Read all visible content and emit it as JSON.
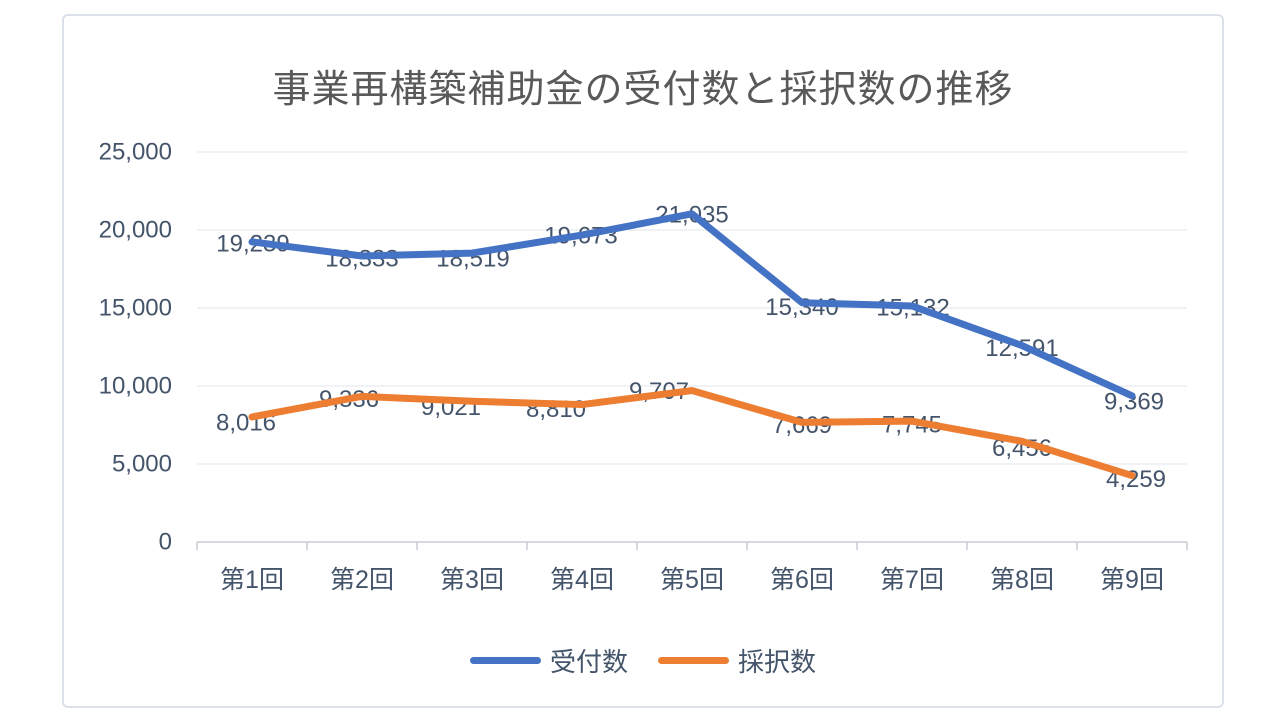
{
  "chart_data": {
    "type": "line",
    "title": "事業再構築補助金の受付数と採択数の推移",
    "categories": [
      "第1回",
      "第2回",
      "第3回",
      "第4回",
      "第5回",
      "第6回",
      "第7回",
      "第8回",
      "第9回"
    ],
    "series": [
      {
        "name": "受付数",
        "color": "#4472C4",
        "values": [
          19239,
          18333,
          18519,
          19673,
          21035,
          15340,
          15132,
          12591,
          9369
        ]
      },
      {
        "name": "採択数",
        "color": "#ED7D31",
        "values": [
          8016,
          9336,
          9021,
          8810,
          9707,
          7669,
          7745,
          6456,
          4259
        ]
      }
    ],
    "ylim": [
      0,
      25000
    ],
    "y_tick_step": 5000,
    "y_tick_labels": [
      "0",
      "5,000",
      "10,000",
      "15,000",
      "20,000",
      "25,000"
    ],
    "grid": true,
    "legend_position": "bottom",
    "data_labels": "center",
    "number_format": "#,##0"
  },
  "colors": {
    "grid": "#E3E6EC",
    "axis": "#C9CED6",
    "tick_text": "#44546A",
    "data_label_text": "#44546A",
    "title_text": "#595959",
    "frame_border": "#DCE1E9",
    "background": "#FFFFFF"
  }
}
